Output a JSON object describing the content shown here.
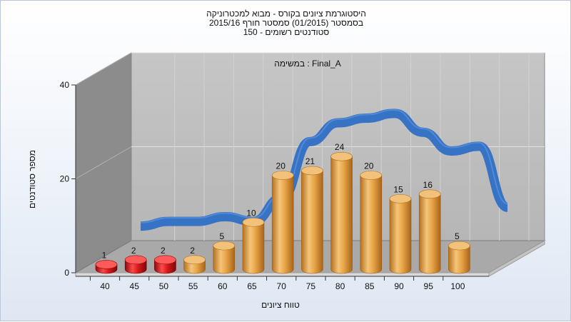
{
  "chart_data": {
    "type": "bar",
    "title_lines": [
      "היסטוגרמת ציונים בקורס - מבוא למכטרוניקה",
      "בסמסטר  (01/2015)  סמסטר חורף 2015/16",
      "סטודנטים רשומים - 150"
    ],
    "annotation": "במשימה : Final_A",
    "xlabel": "טווח ציונים",
    "ylabel": "מספר סטודנטים",
    "categories": [
      "40",
      "45",
      "50",
      "55",
      "60",
      "65",
      "70",
      "75",
      "80",
      "85",
      "90",
      "95",
      "100"
    ],
    "values": [
      1,
      2,
      2,
      2,
      5,
      10,
      20,
      21,
      24,
      20,
      15,
      16,
      5
    ],
    "data_labels": [
      "1",
      "2",
      "2",
      "2",
      "5",
      "10",
      "20",
      "21",
      "24",
      "20",
      "15",
      "16",
      "5"
    ],
    "highlight_categories": [
      "40",
      "45",
      "50"
    ],
    "yticks": [
      "0",
      "20",
      "40"
    ],
    "ylim": [
      0,
      40
    ],
    "trend_line": [
      4,
      5,
      5,
      6,
      5,
      10,
      22,
      26,
      27,
      28,
      24,
      20,
      21,
      8
    ],
    "grid": true,
    "colors": {
      "bar": "#e8a547",
      "bar_highlight": "#d61a1a",
      "trend": "#2f6fc4",
      "back_wall": "#bdbdbd",
      "side_wall": "#8c8c8c",
      "floor": "#a9a9a9"
    }
  }
}
